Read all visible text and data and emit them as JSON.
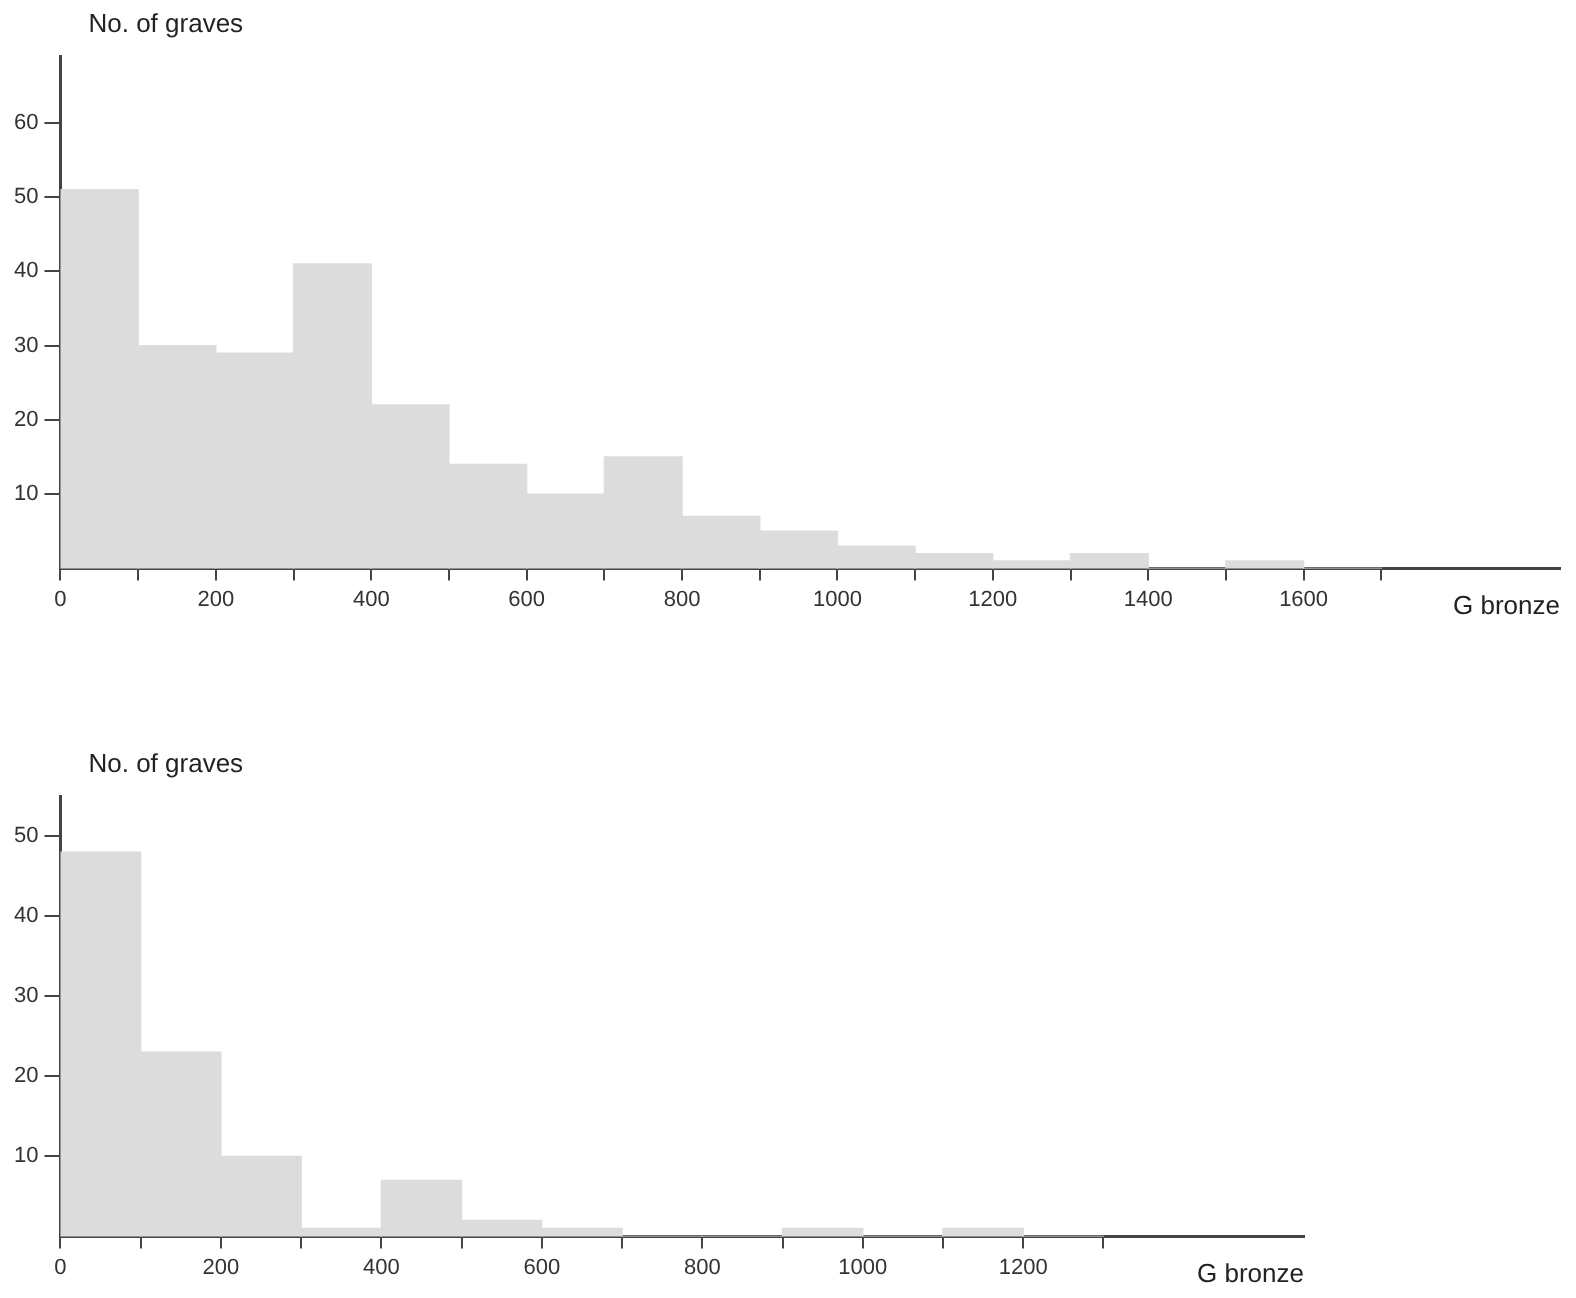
{
  "chart_data": [
    {
      "type": "histogram",
      "ylabel": "No. of graves",
      "xlabel": "G bronze",
      "bins": [
        0,
        100,
        200,
        300,
        400,
        500,
        600,
        700,
        800,
        900,
        1000,
        1100,
        1200,
        1300,
        1400,
        1500,
        1600,
        1700
      ],
      "values": [
        51,
        30,
        29,
        41,
        22,
        14,
        10,
        15,
        7,
        5,
        3,
        2,
        1,
        2,
        0,
        1,
        0
      ],
      "color": "#dcdcdc",
      "xlim": [
        0,
        1930
      ],
      "xticks": [
        0,
        {
          "value": 100,
          "label": null
        },
        200,
        {
          "value": 300,
          "label": null
        },
        400,
        {
          "value": 500,
          "label": null
        },
        600,
        {
          "value": 700,
          "label": null
        },
        800,
        {
          "value": 900,
          "label": null
        },
        1000,
        {
          "value": 1100,
          "label": null
        },
        1200,
        {
          "value": 1300,
          "label": null
        },
        1400,
        {
          "value": 1500,
          "label": null
        },
        1600,
        {
          "value": 1700,
          "label": null
        }
      ],
      "ylim": [
        0,
        69
      ],
      "yticks": [
        10,
        20,
        30,
        40,
        50,
        60
      ],
      "grid": false,
      "legend": false
    },
    {
      "type": "histogram",
      "ylabel": "No. of graves",
      "xlabel": "G bronze",
      "bins": [
        0,
        100,
        200,
        300,
        400,
        500,
        600,
        700,
        800,
        900,
        1000,
        1100,
        1200,
        1300
      ],
      "values": [
        48,
        23,
        10,
        1,
        7,
        2,
        1,
        0,
        0,
        1,
        0,
        1,
        0
      ],
      "color": "#dcdcdc",
      "xlim": [
        0,
        1550
      ],
      "xticks": [
        0,
        {
          "value": 100,
          "label": null
        },
        200,
        {
          "value": 300,
          "label": null
        },
        400,
        {
          "value": 500,
          "label": null
        },
        600,
        {
          "value": 700,
          "label": null
        },
        800,
        {
          "value": 900,
          "label": null
        },
        1000,
        {
          "value": 1100,
          "label": null
        },
        1200,
        {
          "value": 1300,
          "label": null
        }
      ],
      "ylim": [
        0,
        55
      ],
      "yticks": [
        10,
        20,
        30,
        40,
        50
      ],
      "grid": false,
      "legend": false
    }
  ]
}
